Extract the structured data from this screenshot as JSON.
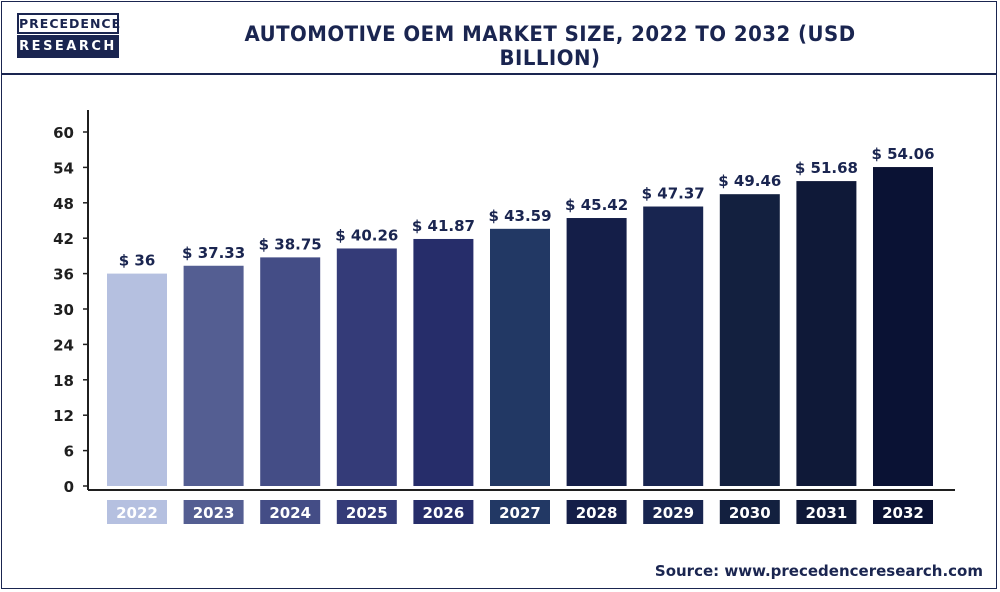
{
  "logo": {
    "line1": "PRECEDENCE",
    "line2": "RESEARCH"
  },
  "source": "Source: www.precedenceresearch.com",
  "colors": {
    "brand": "#1a2550",
    "axis": "#1f1f1f",
    "tick_text": "#1f1f1f",
    "label_text": "#1a2550",
    "category_text": "#ffffff",
    "bars": [
      "#b5c0e0",
      "#545e92",
      "#444d86",
      "#343b78",
      "#262d6a",
      "#223864",
      "#141e48",
      "#182550",
      "#13203f",
      "#0f1938",
      "#0a1234"
    ]
  },
  "chart_data": {
    "type": "bar",
    "title": "AUTOMOTIVE OEM MARKET SIZE, 2022 TO 2032 (USD BILLION)",
    "categories": [
      "2022",
      "2023",
      "2024",
      "2025",
      "2026",
      "2027",
      "2028",
      "2029",
      "2030",
      "2031",
      "2032"
    ],
    "values": [
      36,
      37.33,
      38.75,
      40.26,
      41.87,
      43.59,
      45.42,
      47.37,
      49.46,
      51.68,
      54.06
    ],
    "data_labels": [
      "$ 36",
      "$ 37.33",
      "$ 38.75",
      "$ 40.26",
      "$ 41.87",
      "$ 43.59",
      "$ 45.42",
      "$ 47.37",
      "$ 49.46",
      "$ 51.68",
      "$ 54.06"
    ],
    "yticks": [
      0,
      6,
      12,
      18,
      24,
      30,
      36,
      42,
      48,
      54,
      60
    ],
    "ylim": [
      0,
      60
    ],
    "xlabel": "",
    "ylabel": "",
    "grid": false,
    "legend": "none"
  }
}
